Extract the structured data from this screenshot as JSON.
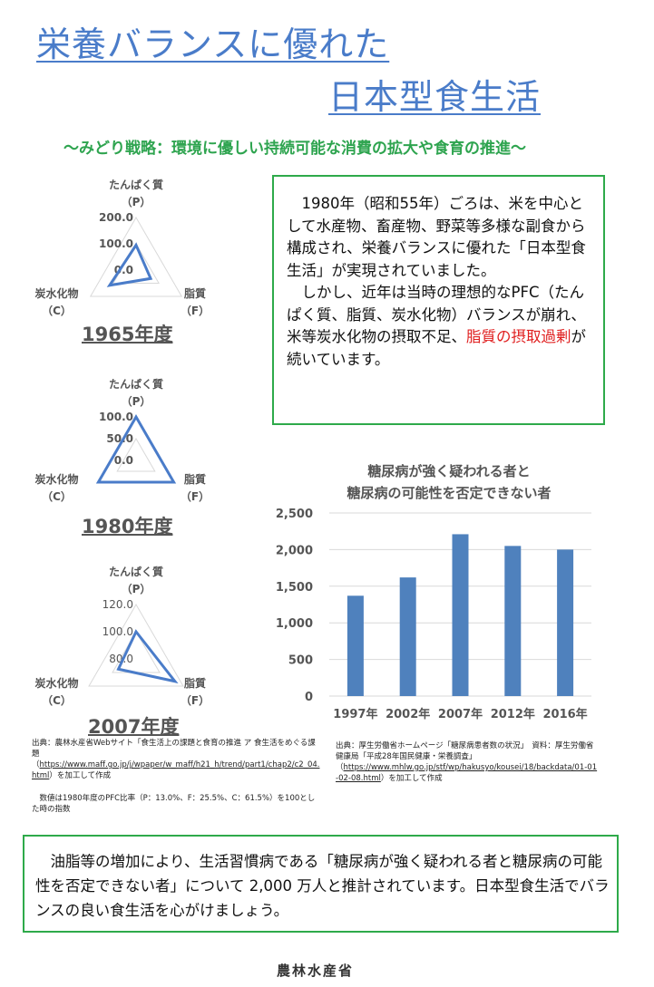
{
  "header": {
    "title_line1": "栄養バランスに優れた",
    "title_line2": "日本型食生活",
    "subtitle": "～みどり戦略：環境に優しい持続可能な消費の拡大や食育の推進～"
  },
  "intro": {
    "p1": "　1980年（昭和55年）ごろは、米を中心として水産物、畜産物、野菜等多様な副食から構成され、栄養バランスに優れた「日本型食生活」が実現されていました。",
    "p2_a": "　しかし、近年は当時の理想的なPFC（たんぱく質、脂質、炭水化物）バランスが崩れ、米等炭水化物の摂取不足、",
    "p2_red": "脂質の摂取過剰",
    "p2_b": "が続いています。"
  },
  "radar_labels": {
    "p": "たんぱく質",
    "p_code": "（P）",
    "f": "脂質",
    "f_code": "（F）",
    "c": "炭水化物",
    "c_code": "（C）"
  },
  "chart_data": [
    {
      "type": "radar",
      "title": "1965年度",
      "axes": [
        "たんぱく質（P）",
        "脂質（F）",
        "炭水化物（C）"
      ],
      "values": [
        95,
        64,
        116
      ],
      "range": [
        0,
        200
      ],
      "ticks": [
        "0.0",
        "100.0",
        "200.0"
      ],
      "color": "#4a7cc9"
    },
    {
      "type": "radar",
      "title": "1980年度",
      "axes": [
        "たんぱく質（P）",
        "脂質（F）",
        "炭水化物（C）"
      ],
      "values": [
        100,
        100,
        100
      ],
      "range": [
        0,
        100
      ],
      "ticks": [
        "0.0",
        "50.0",
        "100.0"
      ],
      "color": "#4a7cc9"
    },
    {
      "type": "radar",
      "title": "2007年度",
      "axes": [
        "たんぱく質（P）",
        "脂質（F）",
        "炭水化物（C）"
      ],
      "values": [
        100,
        113,
        95
      ],
      "range": [
        80,
        120
      ],
      "ticks": [
        "80.0",
        "100.0",
        "120.0"
      ],
      "color": "#4a7cc9"
    },
    {
      "type": "bar",
      "title": "糖尿病が強く疑われる者と\n糖尿病の可能性を否定できない者",
      "title_line1": "糖尿病が強く疑われる者と",
      "title_line2": "糖尿病の可能性を否定できない者",
      "categories": [
        "1997年",
        "2002年",
        "2007年",
        "2012年",
        "2016年"
      ],
      "values": [
        1370,
        1620,
        2210,
        2050,
        2000
      ],
      "ylim": [
        0,
        2500
      ],
      "yticks": [
        "0",
        "500",
        "1,000",
        "1,500",
        "2,000",
        "2,500"
      ],
      "grid": true,
      "color": "#4f81bd"
    }
  ],
  "source_left": {
    "line1": "出典：農林水産省Webサイト「食生活上の課題と食育の推進 ア 食生活をめぐる課題",
    "url": "https://www.maff.go.jp/j/wpaper/w_maff/h21_h/trend/part1/chap2/c2_04.html",
    "suffix": "を加工して作成",
    "note": "　数値は1980年度のPFC比率（P：13.0%、F：25.5%、C：61.5%）を100とした時の指数"
  },
  "source_right": {
    "line1": "出典：厚生労働省ホームページ「糖尿病患者数の状況」　資料：厚生労働省健康局「平成28年国民健康・栄養調査」",
    "url": "https://www.mhlw.go.jp/stf/wp/hakusyo/kousei/18/backdata/01-01-02-08.html",
    "suffix": "を加工して作成"
  },
  "conclusion": "　油脂等の増加により、生活習慣病である「糖尿病が強く疑われる者と糖尿病の可能性を否定できない者」について 2,000 万人と推計されています。日本型食生活でバランスの良い食生活を心がけましょう。",
  "footer": {
    "logo_text": "農林水産省"
  }
}
